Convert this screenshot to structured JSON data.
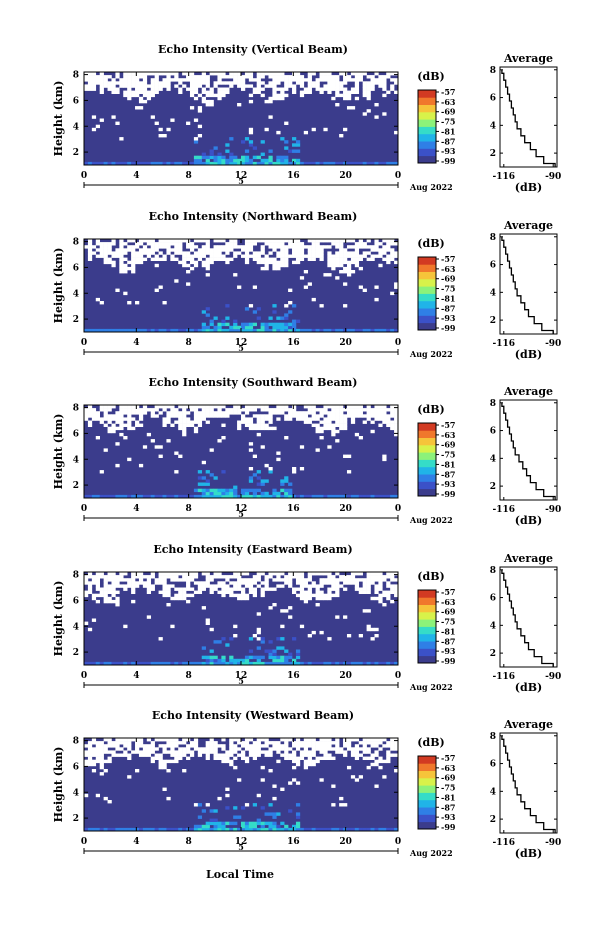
{
  "figure": {
    "xlabel": "Local Time",
    "date_label": "Aug 2022",
    "day_label": "5",
    "ylabel": "Height (km)",
    "cbar_label": "(dB)",
    "avg_title": "Average",
    "avg_xlabel": "(dB)",
    "colors": {
      "background_fill": "#3b3c8c",
      "colormap": [
        "#3b3c8c",
        "#3b51c8",
        "#2f7fe6",
        "#20b4e8",
        "#35dcc8",
        "#8cf27a",
        "#d8f24a",
        "#f6c43a",
        "#f0782c",
        "#d23a22"
      ]
    }
  },
  "chart_data": [
    {
      "type": "heatmap",
      "title": "Echo Intensity (Vertical Beam)",
      "x_ticks": [
        "0",
        "4",
        "8",
        "12",
        "16",
        "20",
        "0"
      ],
      "xlim": [
        0,
        24
      ],
      "y_ticks": [
        "2",
        "4",
        "6",
        "8"
      ],
      "ylim": [
        1,
        8.2
      ],
      "colorbar_ticks": [
        "-57",
        "-63",
        "-69",
        "-75",
        "-81",
        "-87",
        "-93",
        "-99"
      ],
      "echo_top_km": 6.4,
      "enhanced_window_hours": [
        8.5,
        16.5
      ],
      "average_profile": {
        "x_ticks": [
          "-116",
          "-90"
        ],
        "xlim": [
          -118,
          -88
        ],
        "y_ticks": [
          "2",
          "4",
          "6",
          "8"
        ],
        "ylim": [
          1,
          8.2
        ],
        "height_km": [
          1.0,
          1.5,
          2.0,
          2.5,
          3.0,
          3.5,
          4.0,
          4.5,
          5.0,
          5.5,
          6.0,
          6.5,
          7.0,
          7.5,
          8.0
        ],
        "value_db": [
          -89,
          -95,
          -99,
          -102,
          -105,
          -107,
          -109,
          -110,
          -111,
          -112,
          -113,
          -114,
          -115,
          -116,
          -117
        ]
      }
    },
    {
      "type": "heatmap",
      "title": "Echo Intensity (Northward Beam)",
      "x_ticks": [
        "0",
        "4",
        "8",
        "12",
        "16",
        "20",
        "0"
      ],
      "xlim": [
        0,
        24
      ],
      "y_ticks": [
        "2",
        "4",
        "6",
        "8"
      ],
      "ylim": [
        1,
        8.2
      ],
      "colorbar_ticks": [
        "-57",
        "-63",
        "-69",
        "-75",
        "-81",
        "-87",
        "-93",
        "-99"
      ],
      "echo_top_km": 6.2,
      "enhanced_window_hours": [
        9,
        16.5
      ],
      "average_profile": {
        "x_ticks": [
          "-116",
          "-90"
        ],
        "xlim": [
          -118,
          -88
        ],
        "y_ticks": [
          "2",
          "4",
          "6",
          "8"
        ],
        "ylim": [
          1,
          8.2
        ],
        "height_km": [
          1.0,
          1.5,
          2.0,
          2.5,
          3.0,
          3.5,
          4.0,
          4.5,
          5.0,
          5.5,
          6.0,
          6.5,
          7.0,
          7.5,
          8.0
        ],
        "value_db": [
          -90,
          -96,
          -100,
          -103,
          -105,
          -107,
          -109,
          -110,
          -111,
          -112,
          -113,
          -114,
          -115,
          -116,
          -117
        ]
      }
    },
    {
      "type": "heatmap",
      "title": "Echo Intensity (Southward Beam)",
      "x_ticks": [
        "0",
        "4",
        "8",
        "12",
        "16",
        "20",
        "0"
      ],
      "xlim": [
        0,
        24
      ],
      "y_ticks": [
        "2",
        "4",
        "6",
        "8"
      ],
      "ylim": [
        1,
        8.2
      ],
      "colorbar_ticks": [
        "-57",
        "-63",
        "-69",
        "-75",
        "-81",
        "-87",
        "-93",
        "-99"
      ],
      "echo_top_km": 6.6,
      "enhanced_window_hours": [
        8.5,
        16
      ],
      "average_profile": {
        "x_ticks": [
          "-116",
          "-90"
        ],
        "xlim": [
          -118,
          -88
        ],
        "y_ticks": [
          "2",
          "4",
          "6",
          "8"
        ],
        "ylim": [
          1,
          8.2
        ],
        "height_km": [
          1.0,
          1.5,
          2.0,
          2.5,
          3.0,
          3.5,
          4.0,
          4.5,
          5.0,
          5.5,
          6.0,
          6.5,
          7.0,
          7.5,
          8.0
        ],
        "value_db": [
          -89,
          -95,
          -99,
          -102,
          -104,
          -106,
          -108,
          -110,
          -111,
          -112,
          -113,
          -114,
          -115,
          -116,
          -117
        ]
      }
    },
    {
      "type": "heatmap",
      "title": "Echo Intensity (Eastward Beam)",
      "x_ticks": [
        "0",
        "4",
        "8",
        "12",
        "16",
        "20",
        "0"
      ],
      "xlim": [
        0,
        24
      ],
      "y_ticks": [
        "2",
        "4",
        "6",
        "8"
      ],
      "ylim": [
        1,
        8.2
      ],
      "colorbar_ticks": [
        "-57",
        "-63",
        "-69",
        "-75",
        "-81",
        "-87",
        "-93",
        "-99"
      ],
      "echo_top_km": 6.4,
      "enhanced_window_hours": [
        9,
        16.5
      ],
      "average_profile": {
        "x_ticks": [
          "-116",
          "-90"
        ],
        "xlim": [
          -118,
          -88
        ],
        "y_ticks": [
          "2",
          "4",
          "6",
          "8"
        ],
        "ylim": [
          1,
          8.2
        ],
        "height_km": [
          1.0,
          1.5,
          2.0,
          2.5,
          3.0,
          3.5,
          4.0,
          4.5,
          5.0,
          5.5,
          6.0,
          6.5,
          7.0,
          7.5,
          8.0
        ],
        "value_db": [
          -90,
          -96,
          -100,
          -103,
          -105,
          -107,
          -109,
          -110,
          -111,
          -112,
          -113,
          -114,
          -115,
          -116,
          -117
        ]
      }
    },
    {
      "type": "heatmap",
      "title": "Echo Intensity (Westward Beam)",
      "x_ticks": [
        "0",
        "4",
        "8",
        "12",
        "16",
        "20",
        "0"
      ],
      "xlim": [
        0,
        24
      ],
      "y_ticks": [
        "2",
        "4",
        "6",
        "8"
      ],
      "ylim": [
        1,
        8.2
      ],
      "colorbar_ticks": [
        "-57",
        "-63",
        "-69",
        "-75",
        "-81",
        "-87",
        "-93",
        "-99"
      ],
      "echo_top_km": 6.5,
      "enhanced_window_hours": [
        8.5,
        16.5
      ],
      "average_profile": {
        "x_ticks": [
          "-116",
          "-90"
        ],
        "xlim": [
          -118,
          -88
        ],
        "y_ticks": [
          "2",
          "4",
          "6",
          "8"
        ],
        "ylim": [
          1,
          8.2
        ],
        "height_km": [
          1.0,
          1.5,
          2.0,
          2.5,
          3.0,
          3.5,
          4.0,
          4.5,
          5.0,
          5.5,
          6.0,
          6.5,
          7.0,
          7.5,
          8.0
        ],
        "value_db": [
          -89,
          -95,
          -99,
          -102,
          -105,
          -107,
          -109,
          -110,
          -111,
          -112,
          -113,
          -114,
          -115,
          -116,
          -117
        ]
      }
    }
  ]
}
